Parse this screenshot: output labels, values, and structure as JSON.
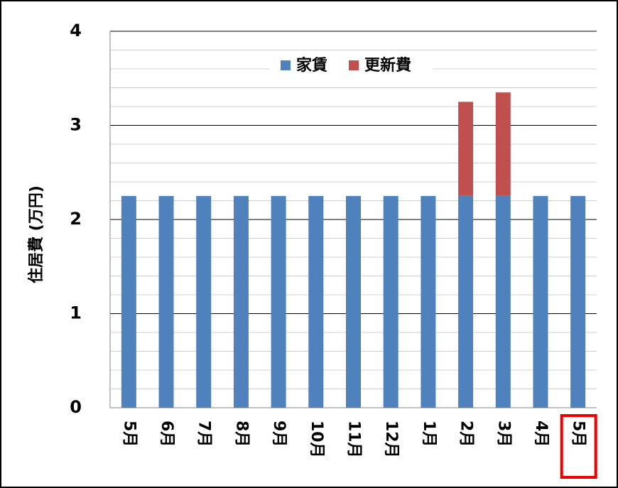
{
  "chart_data": {
    "type": "stacked_bar",
    "y_label": "住居費 (万円)",
    "categories": [
      "5月",
      "6月",
      "7月",
      "8月",
      "9月",
      "10月",
      "11月",
      "12月",
      "1月",
      "2月",
      "3月",
      "4月",
      "5月"
    ],
    "series": [
      {
        "name": "家賃",
        "color": "#4f81bd",
        "values": [
          2.25,
          2.25,
          2.25,
          2.25,
          2.25,
          2.25,
          2.25,
          2.25,
          2.25,
          2.25,
          2.25,
          2.25,
          2.25
        ]
      },
      {
        "name": "更新費",
        "color": "#c0504d",
        "values": [
          0,
          0,
          0,
          0,
          0,
          0,
          0,
          0,
          0,
          1.0,
          1.1,
          0,
          0
        ]
      }
    ],
    "ylim": [
      0,
      4
    ],
    "yticks": [
      0,
      1,
      2,
      3,
      4
    ],
    "minor_yticks": [
      0.2,
      0.4,
      0.6,
      0.8,
      1.2,
      1.4,
      1.6,
      1.8,
      2.2,
      2.4,
      2.6,
      2.8,
      3.2,
      3.4,
      3.6,
      3.8
    ],
    "grid": true,
    "legend": "top"
  }
}
